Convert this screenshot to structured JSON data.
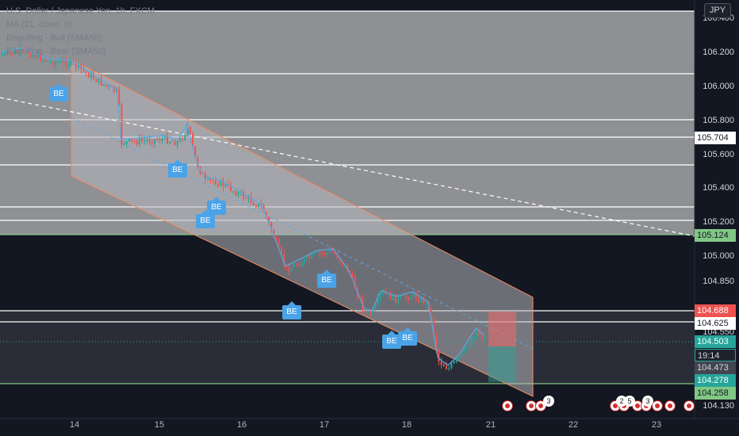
{
  "legend": {
    "title": "U.S. Dollar / Japanese Yen, 1h, FXCM",
    "ma": "MA (21, close, 0)",
    "bull": "Engulfing - Bull (SMA50)",
    "bear": "Engulfing - Bear (SMA50)"
  },
  "currency": "JPY",
  "price_axis": [
    "106.400",
    "106.200",
    "106.000",
    "105.800",
    "105.600",
    "105.400",
    "105.200",
    "105.000",
    "104.850",
    "104.550",
    "104.130"
  ],
  "badges": {
    "b1": "105.704",
    "b2": "105.124",
    "b3": "104.688",
    "b4": "104.625",
    "b5": "104.503",
    "b6": "19:14",
    "b7": "104.473",
    "b8": "104.278",
    "b9": "104.258"
  },
  "time_axis": [
    "14",
    "15",
    "16",
    "17",
    "18",
    "21",
    "22",
    "23"
  ],
  "markers": {
    "be": "BE",
    "bt": "BE"
  },
  "events": {
    "c1": "3",
    "c2": "2",
    "c3": "5",
    "c4": "3"
  },
  "colors": {
    "up": "#26a69a",
    "down": "#ef5350",
    "ma": "#5aa9e6",
    "channel": "#f28b62"
  }
}
